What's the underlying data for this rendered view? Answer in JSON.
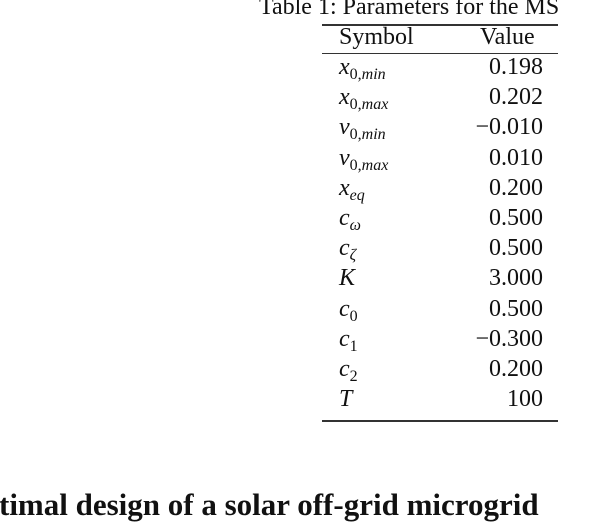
{
  "caption": "Table 1: Parameters for the MS",
  "table": {
    "headers": [
      "Symbol",
      "Value"
    ],
    "rows": [
      {
        "base": "x",
        "sub_num": "0,",
        "sub_it": "min",
        "value": "0.198"
      },
      {
        "base": "x",
        "sub_num": "0,",
        "sub_it": "max",
        "value": "0.202"
      },
      {
        "base": "v",
        "sub_num": "0,",
        "sub_it": "min",
        "value": "−0.010"
      },
      {
        "base": "v",
        "sub_num": "0,",
        "sub_it": "max",
        "value": "0.010"
      },
      {
        "base": "x",
        "sub_num": "",
        "sub_it": "eq",
        "value": "0.200"
      },
      {
        "base": "c",
        "sub_num": "",
        "sub_it": "ω",
        "value": "0.500"
      },
      {
        "base": "c",
        "sub_num": "",
        "sub_it": "ζ",
        "value": "0.500"
      },
      {
        "base": "K",
        "sub_num": "",
        "sub_it": "",
        "value": "3.000"
      },
      {
        "base": "c",
        "sub_num": "0",
        "sub_it": "",
        "value": "0.500"
      },
      {
        "base": "c",
        "sub_num": "1",
        "sub_it": "",
        "value": "−0.300"
      },
      {
        "base": "c",
        "sub_num": "2",
        "sub_it": "",
        "value": "0.200"
      },
      {
        "base": "T",
        "sub_num": "",
        "sub_it": "",
        "value": "100"
      }
    ]
  },
  "section_heading": "timal design of a solar off-grid microgrid"
}
